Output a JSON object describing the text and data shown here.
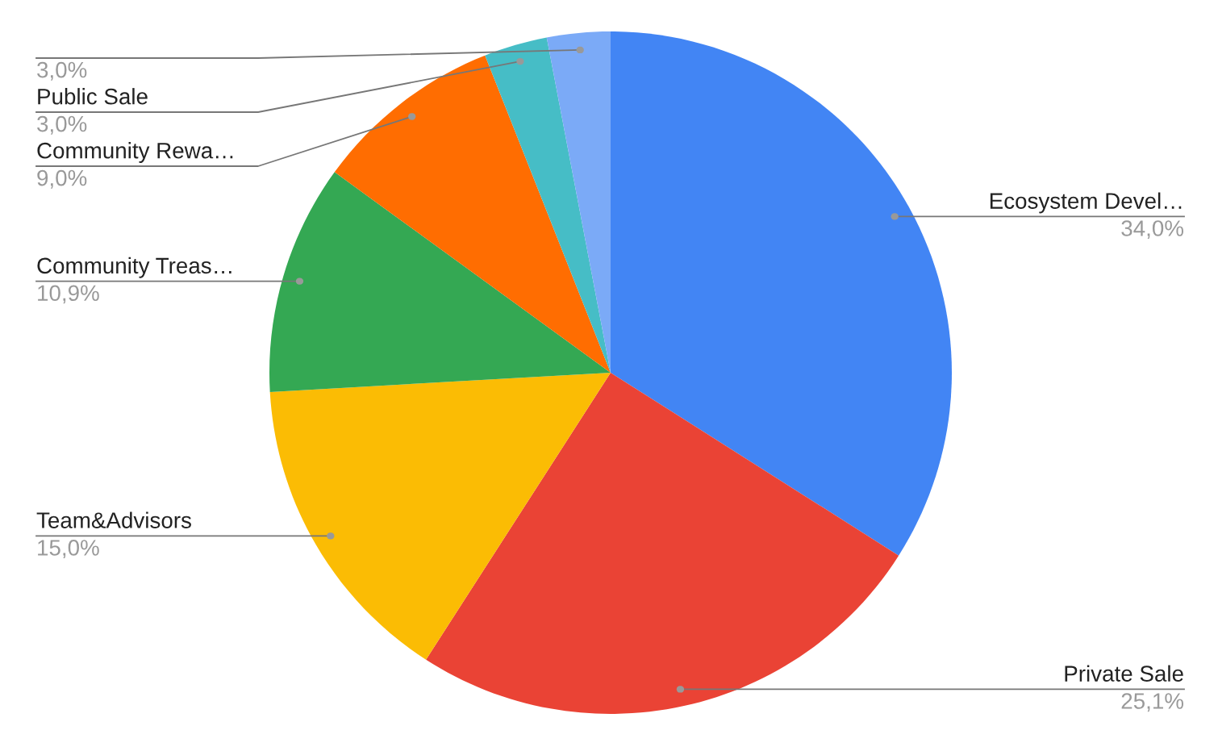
{
  "chart_data": {
    "type": "pie",
    "categories": [
      "Ecosystem Devel…",
      "Private Sale",
      "Team&Advisors",
      "Community Treas…",
      "Community Rewa…",
      "Public Sale",
      null
    ],
    "values": [
      34.0,
      25.1,
      15.0,
      10.9,
      9.0,
      3.0,
      3.0
    ],
    "colors": [
      "#4285f4",
      "#ea4335",
      "#fbbc04",
      "#34a853",
      "#ff6d01",
      "#46bdc6",
      "#7baaf7"
    ],
    "value_labels": [
      "34,0%",
      "25,1%",
      "15,0%",
      "10,9%",
      "9,0%",
      "3,0%",
      "3,0%"
    ],
    "legend": false
  }
}
